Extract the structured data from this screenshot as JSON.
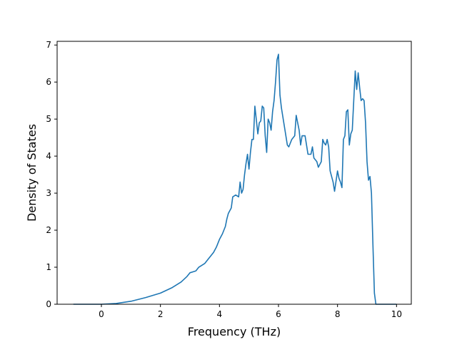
{
  "chart_data": {
    "type": "line",
    "title": "",
    "xlabel": "Frequency (THz)",
    "ylabel": "Density of States",
    "xlim": [
      -1.5,
      10.5
    ],
    "ylim": [
      0,
      7.1
    ],
    "xticks": [
      0,
      2,
      4,
      6,
      8,
      10
    ],
    "xtick_labels": [
      "0",
      "2",
      "4",
      "6",
      "8",
      "10"
    ],
    "yticks": [
      0,
      1,
      2,
      3,
      4,
      5,
      6,
      7
    ],
    "ytick_labels": [
      "0",
      "1",
      "2",
      "3",
      "4",
      "5",
      "6",
      "7"
    ],
    "grid": false,
    "legend": "none",
    "line_color": "#1f77b4",
    "series": [
      {
        "points": [
          [
            -0.95,
            0
          ],
          [
            0,
            0
          ],
          [
            0.5,
            0.02
          ],
          [
            1.0,
            0.08
          ],
          [
            1.5,
            0.18
          ],
          [
            2.0,
            0.3
          ],
          [
            2.4,
            0.45
          ],
          [
            2.7,
            0.6
          ],
          [
            2.9,
            0.75
          ],
          [
            3.0,
            0.85
          ],
          [
            3.2,
            0.9
          ],
          [
            3.3,
            1.0
          ],
          [
            3.5,
            1.1
          ],
          [
            3.6,
            1.2
          ],
          [
            3.8,
            1.4
          ],
          [
            3.9,
            1.55
          ],
          [
            4.0,
            1.75
          ],
          [
            4.1,
            1.9
          ],
          [
            4.2,
            2.1
          ],
          [
            4.25,
            2.3
          ],
          [
            4.3,
            2.45
          ],
          [
            4.4,
            2.6
          ],
          [
            4.45,
            2.9
          ],
          [
            4.55,
            2.95
          ],
          [
            4.65,
            2.9
          ],
          [
            4.7,
            3.3
          ],
          [
            4.75,
            3.0
          ],
          [
            4.8,
            3.1
          ],
          [
            4.85,
            3.5
          ],
          [
            4.9,
            3.8
          ],
          [
            4.95,
            4.05
          ],
          [
            5.0,
            3.65
          ],
          [
            5.05,
            4.1
          ],
          [
            5.1,
            4.45
          ],
          [
            5.15,
            4.45
          ],
          [
            5.2,
            5.35
          ],
          [
            5.3,
            4.6
          ],
          [
            5.35,
            4.9
          ],
          [
            5.4,
            4.95
          ],
          [
            5.45,
            5.35
          ],
          [
            5.5,
            5.3
          ],
          [
            5.55,
            4.55
          ],
          [
            5.6,
            4.1
          ],
          [
            5.65,
            5.0
          ],
          [
            5.7,
            4.9
          ],
          [
            5.75,
            4.7
          ],
          [
            5.8,
            5.2
          ],
          [
            5.85,
            5.5
          ],
          [
            5.9,
            6.0
          ],
          [
            5.95,
            6.6
          ],
          [
            6.0,
            6.75
          ],
          [
            6.05,
            5.65
          ],
          [
            6.1,
            5.3
          ],
          [
            6.2,
            4.8
          ],
          [
            6.3,
            4.3
          ],
          [
            6.35,
            4.25
          ],
          [
            6.45,
            4.45
          ],
          [
            6.55,
            4.55
          ],
          [
            6.6,
            5.1
          ],
          [
            6.7,
            4.7
          ],
          [
            6.75,
            4.3
          ],
          [
            6.8,
            4.55
          ],
          [
            6.9,
            4.55
          ],
          [
            7.0,
            4.05
          ],
          [
            7.1,
            4.05
          ],
          [
            7.15,
            4.25
          ],
          [
            7.2,
            3.95
          ],
          [
            7.3,
            3.85
          ],
          [
            7.35,
            3.7
          ],
          [
            7.45,
            3.85
          ],
          [
            7.5,
            4.45
          ],
          [
            7.55,
            4.35
          ],
          [
            7.6,
            4.3
          ],
          [
            7.65,
            4.45
          ],
          [
            7.7,
            4.25
          ],
          [
            7.75,
            3.6
          ],
          [
            7.85,
            3.3
          ],
          [
            7.9,
            3.05
          ],
          [
            8.0,
            3.6
          ],
          [
            8.05,
            3.4
          ],
          [
            8.1,
            3.3
          ],
          [
            8.15,
            3.15
          ],
          [
            8.2,
            4.45
          ],
          [
            8.25,
            4.55
          ],
          [
            8.3,
            5.2
          ],
          [
            8.35,
            5.25
          ],
          [
            8.4,
            4.3
          ],
          [
            8.45,
            4.6
          ],
          [
            8.5,
            4.7
          ],
          [
            8.55,
            5.5
          ],
          [
            8.6,
            6.3
          ],
          [
            8.65,
            5.8
          ],
          [
            8.7,
            6.25
          ],
          [
            8.75,
            5.85
          ],
          [
            8.8,
            5.5
          ],
          [
            8.85,
            5.55
          ],
          [
            8.9,
            5.5
          ],
          [
            8.95,
            4.9
          ],
          [
            9.0,
            3.85
          ],
          [
            9.05,
            3.35
          ],
          [
            9.1,
            3.45
          ],
          [
            9.15,
            3.0
          ],
          [
            9.2,
            1.6
          ],
          [
            9.25,
            0.3
          ],
          [
            9.3,
            0.0
          ],
          [
            9.6,
            0
          ],
          [
            10.0,
            0
          ]
        ]
      }
    ]
  }
}
